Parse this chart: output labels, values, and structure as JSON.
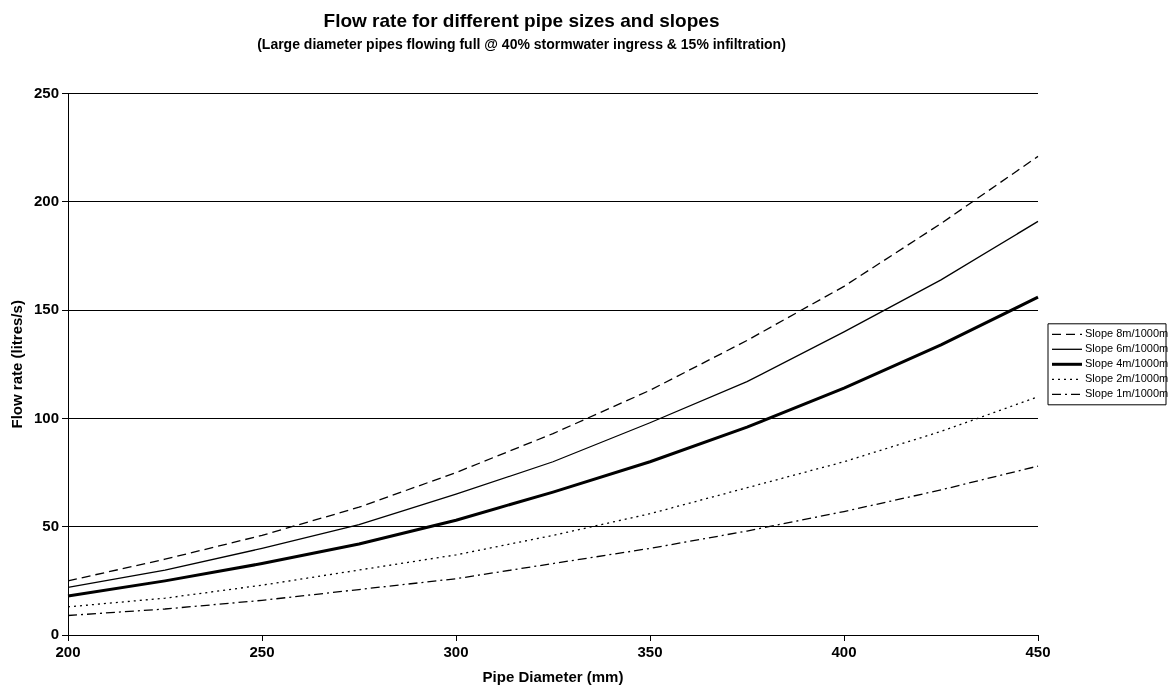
{
  "chart_data": {
    "type": "line",
    "title": "Flow rate for different pipe sizes and slopes",
    "subtitle": "(Large diameter pipes flowing full @ 40% stormwater ingress & 15% infiltration)",
    "xlabel": "Pipe Diameter (mm)",
    "ylabel": "Flow rate (litres/s)",
    "x": [
      200,
      225,
      250,
      275,
      300,
      325,
      350,
      375,
      400,
      425,
      450
    ],
    "series": [
      {
        "name": "Slope 8m/1000m",
        "color": "#000000",
        "line_style": "dashed",
        "values": [
          25,
          35,
          46,
          59,
          75,
          93,
          113,
          136,
          161,
          190,
          221
        ]
      },
      {
        "name": "Slope 6m/1000m",
        "color": "#000000",
        "line_style": "solid",
        "values": [
          22,
          30,
          40,
          51,
          65,
          80,
          98,
          117,
          140,
          164,
          191
        ]
      },
      {
        "name": "Slope 4m/1000m",
        "color": "#000000",
        "line_style": "solid",
        "values": [
          18,
          25,
          33,
          42,
          53,
          66,
          80,
          96,
          114,
          134,
          156
        ]
      },
      {
        "name": "Slope 2m/1000m",
        "color": "#000000",
        "line_style": "dotted",
        "values": [
          13,
          17,
          23,
          30,
          37,
          46,
          56,
          68,
          80,
          94,
          110
        ]
      },
      {
        "name": "Slope 1m/1000m",
        "color": "#000000",
        "line_style": "dashdot",
        "values": [
          9,
          12,
          16,
          21,
          26,
          33,
          40,
          48,
          57,
          67,
          78
        ]
      }
    ],
    "xlim": [
      200,
      450
    ],
    "xticks": [
      200,
      250,
      300,
      350,
      400,
      450
    ],
    "ylim": [
      0,
      250
    ],
    "yticks": [
      0,
      50,
      100,
      150,
      200,
      250
    ],
    "grid": "y",
    "legend": "right",
    "marker": "none"
  }
}
